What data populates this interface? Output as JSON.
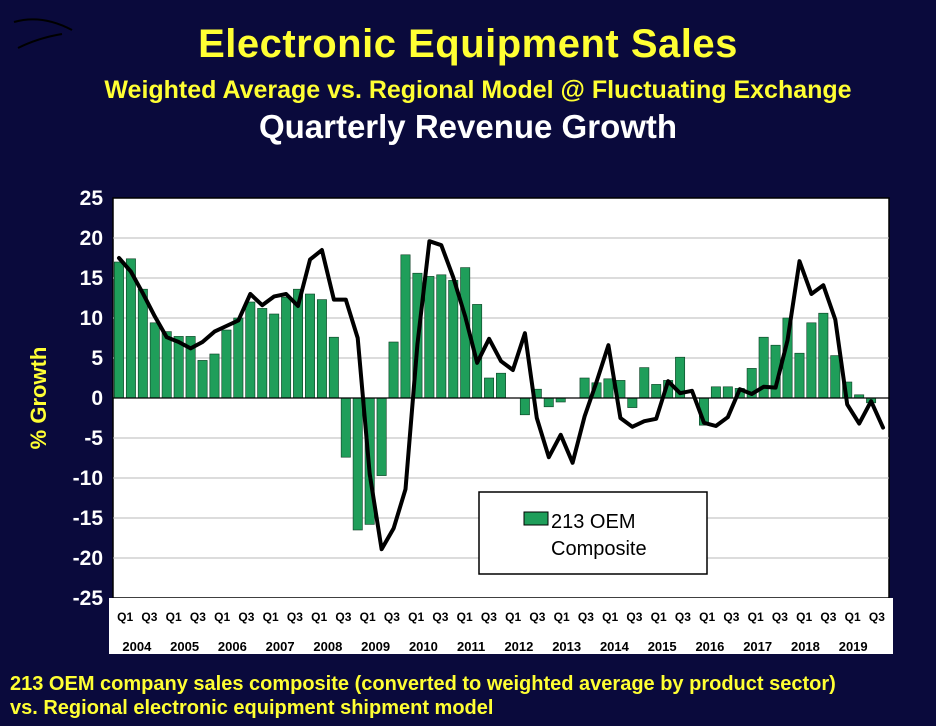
{
  "header": {
    "title": "Electronic Equipment Sales",
    "subtitle": "Weighted Average vs. Regional Model @ Fluctuating Exchange",
    "chart_title": "Quarterly Revenue Growth"
  },
  "footer": {
    "line1": "213 OEM company sales composite (converted to weighted average by product sector)",
    "line2": "vs. Regional electronic equipment shipment model"
  },
  "colors": {
    "background": "#0a0a3c",
    "plot_bg": "#ffffff",
    "bar": "#1f9e5a",
    "line": "#000000",
    "title": "#ffff33"
  },
  "chart_data": {
    "type": "bar",
    "ylabel": "% Growth",
    "ylim": [
      -25,
      25
    ],
    "yticks": [
      25,
      20,
      15,
      10,
      5,
      0,
      -5,
      -10,
      -15,
      -20,
      -25
    ],
    "grid": true,
    "legend": {
      "label_line1": "213 OEM",
      "label_line2": "Composite",
      "placement": "bottom-center"
    },
    "quarter_labels": [
      "Q1",
      "Q3",
      "Q1",
      "Q3",
      "Q1",
      "Q3",
      "Q1",
      "Q3",
      "Q1",
      "Q3",
      "Q1",
      "Q3",
      "Q1",
      "Q3",
      "Q1",
      "Q3",
      "Q1",
      "Q3",
      "Q1",
      "Q3",
      "Q1",
      "Q3",
      "Q1",
      "Q3",
      "Q1",
      "Q3",
      "Q1",
      "Q3",
      "Q1",
      "Q3",
      "Q1",
      "Q3"
    ],
    "years": [
      "2004",
      "2005",
      "2006",
      "2007",
      "2008",
      "2009",
      "2010",
      "2011",
      "2012",
      "2013",
      "2014",
      "2015",
      "2016",
      "2017",
      "2018",
      "2019"
    ],
    "series": [
      {
        "name": "213 OEM Composite",
        "kind": "bar",
        "values": [
          17,
          17.4,
          13.6,
          9.4,
          8.3,
          7.7,
          7.7,
          4.7,
          5.5,
          8.5,
          10,
          12,
          11.2,
          10.5,
          12.6,
          13.6,
          13,
          12.3,
          7.6,
          -7.4,
          -16.5,
          -15.8,
          -9.7,
          7,
          17.9,
          15.6,
          15.2,
          15.4,
          14.7,
          16.3,
          11.7,
          2.5,
          3.1,
          0,
          -2.1,
          1.1,
          -1.1,
          -0.5,
          0,
          2.5,
          1.9,
          2.4,
          2.2,
          -1.2,
          3.8,
          1.7,
          2.2,
          5.1,
          0,
          -3.4,
          1.4,
          1.4,
          1.2,
          3.7,
          7.6,
          6.6,
          10,
          5.6,
          9.4,
          10.6,
          5.3,
          2,
          0.4,
          -0.6,
          0
        ]
      },
      {
        "kind": "line",
        "values": [
          17.5,
          15.8,
          13.1,
          10.2,
          7.6,
          7,
          6.2,
          7,
          8.3,
          9,
          9.7,
          13,
          11.6,
          12.7,
          13,
          11.5,
          17.3,
          18.5,
          12.3,
          12.3,
          7.5,
          -9.5,
          -18.9,
          -16.3,
          -11.4,
          6.7,
          19.6,
          19.1,
          15.1,
          10.2,
          4.4,
          7.4,
          4.6,
          3.5,
          8.1,
          -2.5,
          -7.4,
          -4.6,
          -8.1,
          -2.3,
          2,
          6.6,
          -2.5,
          -3.6,
          -2.9,
          -2.6,
          2.1,
          0.6,
          0.9,
          -3.1,
          -3.5,
          -2.4,
          1.1,
          0.5,
          1.4,
          1.3,
          7.2,
          17.1,
          13,
          14.1,
          9.8,
          -0.8,
          -3.2,
          -0.4,
          -3.7
        ]
      }
    ]
  }
}
